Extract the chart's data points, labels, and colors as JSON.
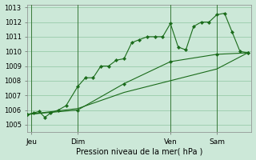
{
  "xlabel": "Pression niveau de la mer( hPa )",
  "bg_color": "#cce8d8",
  "grid_color": "#99ccaa",
  "line_color": "#1a6b1a",
  "marker_color": "#1a6b1a",
  "ylim": [
    1004.5,
    1013.2
  ],
  "yticks": [
    1005,
    1006,
    1007,
    1008,
    1009,
    1010,
    1011,
    1012,
    1013
  ],
  "xtick_labels": [
    "Jeu",
    "Dim",
    "Ven",
    "Sam"
  ],
  "xtick_positions": [
    2,
    26,
    74,
    98
  ],
  "vline_positions": [
    2,
    26,
    74,
    98
  ],
  "xlim": [
    0,
    116
  ],
  "series1_x": [
    0,
    3,
    6,
    9,
    12,
    16,
    20,
    26,
    30,
    34,
    38,
    42,
    46,
    50,
    54,
    58,
    62,
    66,
    70,
    74,
    78,
    82,
    86,
    90,
    94,
    98,
    102,
    106,
    110,
    114
  ],
  "series1_y": [
    1005.7,
    1005.8,
    1005.9,
    1005.5,
    1005.8,
    1006.0,
    1006.3,
    1007.6,
    1008.2,
    1008.2,
    1009.0,
    1009.0,
    1009.4,
    1009.5,
    1010.6,
    1010.8,
    1011.0,
    1011.0,
    1011.0,
    1011.9,
    1010.3,
    1010.1,
    1011.7,
    1012.0,
    1012.0,
    1012.5,
    1012.6,
    1011.3,
    1010.0,
    1009.9
  ],
  "series2_x": [
    0,
    26,
    50,
    74,
    98,
    114
  ],
  "series2_y": [
    1005.7,
    1006.0,
    1007.8,
    1009.3,
    1009.8,
    1009.9
  ],
  "series3_x": [
    0,
    26,
    50,
    74,
    98,
    114
  ],
  "series3_y": [
    1005.7,
    1006.1,
    1007.2,
    1008.0,
    1008.8,
    1009.9
  ],
  "xlabel_fontsize": 7,
  "ytick_fontsize": 6,
  "xtick_fontsize": 6.5
}
